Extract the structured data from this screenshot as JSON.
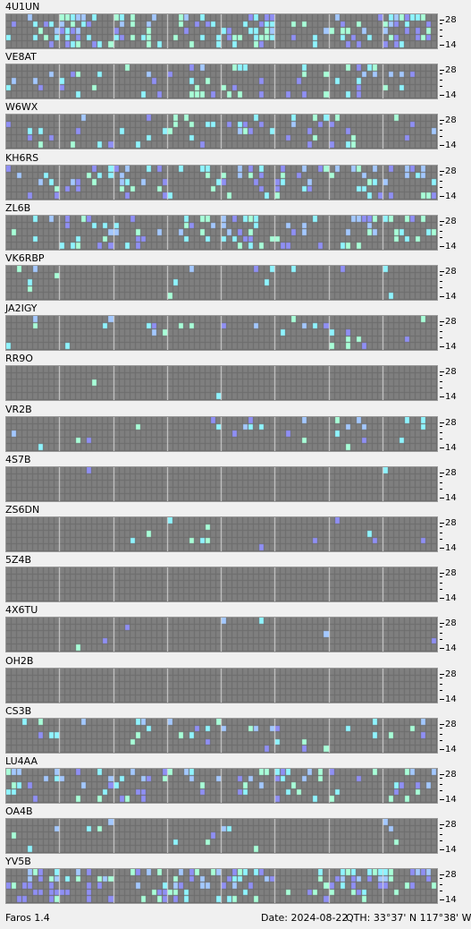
{
  "colors": {
    "grid_bg": "#6c6c6c",
    "cell_empty": "#7f7f7f",
    "cell_strong": "#8ff4ff",
    "cell_medium": "#a8ffd8",
    "cell_weak": "#8f8ff4",
    "cell_blue": "#a3c8ff"
  },
  "axis": {
    "top_label": "28",
    "bottom_label": "14"
  },
  "panels": [
    {
      "callsign": "4U1UN",
      "level": 0.45,
      "bias": [
        0.5,
        0.5,
        0.6,
        0.8,
        0.8
      ]
    },
    {
      "callsign": "VE8AT",
      "level": 0.22,
      "bias": [
        0.6,
        0.5,
        0.4,
        0.3,
        0.2
      ]
    },
    {
      "callsign": "W6WX",
      "level": 0.2,
      "bias": [
        0.3,
        0.3,
        0.3,
        0.4,
        0.5
      ]
    },
    {
      "callsign": "KH6RS",
      "level": 0.35,
      "bias": [
        0.3,
        0.4,
        0.5,
        0.6,
        0.7
      ]
    },
    {
      "callsign": "ZL6B",
      "level": 0.35,
      "bias": [
        0.4,
        0.4,
        0.5,
        0.6,
        0.7
      ]
    },
    {
      "callsign": "VK6RBP",
      "level": 0.06,
      "bias": [
        0.1,
        0.1,
        0.2,
        0.2,
        0.6
      ]
    },
    {
      "callsign": "JA2IGY",
      "level": 0.09,
      "bias": [
        0.1,
        0.1,
        0.2,
        0.5,
        0.6
      ]
    },
    {
      "callsign": "RR9O",
      "level": 0.01,
      "bias": [
        0.0,
        0.0,
        0.0,
        0.2,
        0.2
      ]
    },
    {
      "callsign": "VR2B",
      "level": 0.12,
      "bias": [
        0.1,
        0.2,
        0.3,
        0.4,
        0.6
      ]
    },
    {
      "callsign": "4S7B",
      "level": 0.01,
      "bias": [
        0.2,
        0.0,
        0.0,
        0.0,
        0.0
      ]
    },
    {
      "callsign": "ZS6DN",
      "level": 0.05,
      "bias": [
        0.2,
        0.2,
        0.3,
        0.4,
        0.6
      ]
    },
    {
      "callsign": "5Z4B",
      "level": 0.0,
      "bias": [
        0,
        0,
        0,
        0,
        0
      ]
    },
    {
      "callsign": "4X6TU",
      "level": 0.02,
      "bias": [
        0.1,
        0.1,
        0.2,
        0.2,
        0.2
      ]
    },
    {
      "callsign": "OH2B",
      "level": 0.0,
      "bias": [
        0,
        0,
        0,
        0,
        0
      ]
    },
    {
      "callsign": "CS3B",
      "level": 0.12,
      "bias": [
        0.2,
        0.3,
        0.4,
        0.5,
        0.6
      ]
    },
    {
      "callsign": "LU4AA",
      "level": 0.3,
      "bias": [
        0.3,
        0.4,
        0.5,
        0.6,
        0.8
      ]
    },
    {
      "callsign": "OA4B",
      "level": 0.05,
      "bias": [
        0.2,
        0.2,
        0.3,
        0.4,
        0.5
      ]
    },
    {
      "callsign": "YV5B",
      "level": 0.45,
      "bias": [
        0.5,
        0.5,
        0.6,
        0.7,
        0.8
      ]
    }
  ],
  "status": {
    "app_version": "Faros 1.4",
    "date": "Date: 2024-08-22",
    "qth": "QTH: 33°37' N  117°38' W"
  }
}
